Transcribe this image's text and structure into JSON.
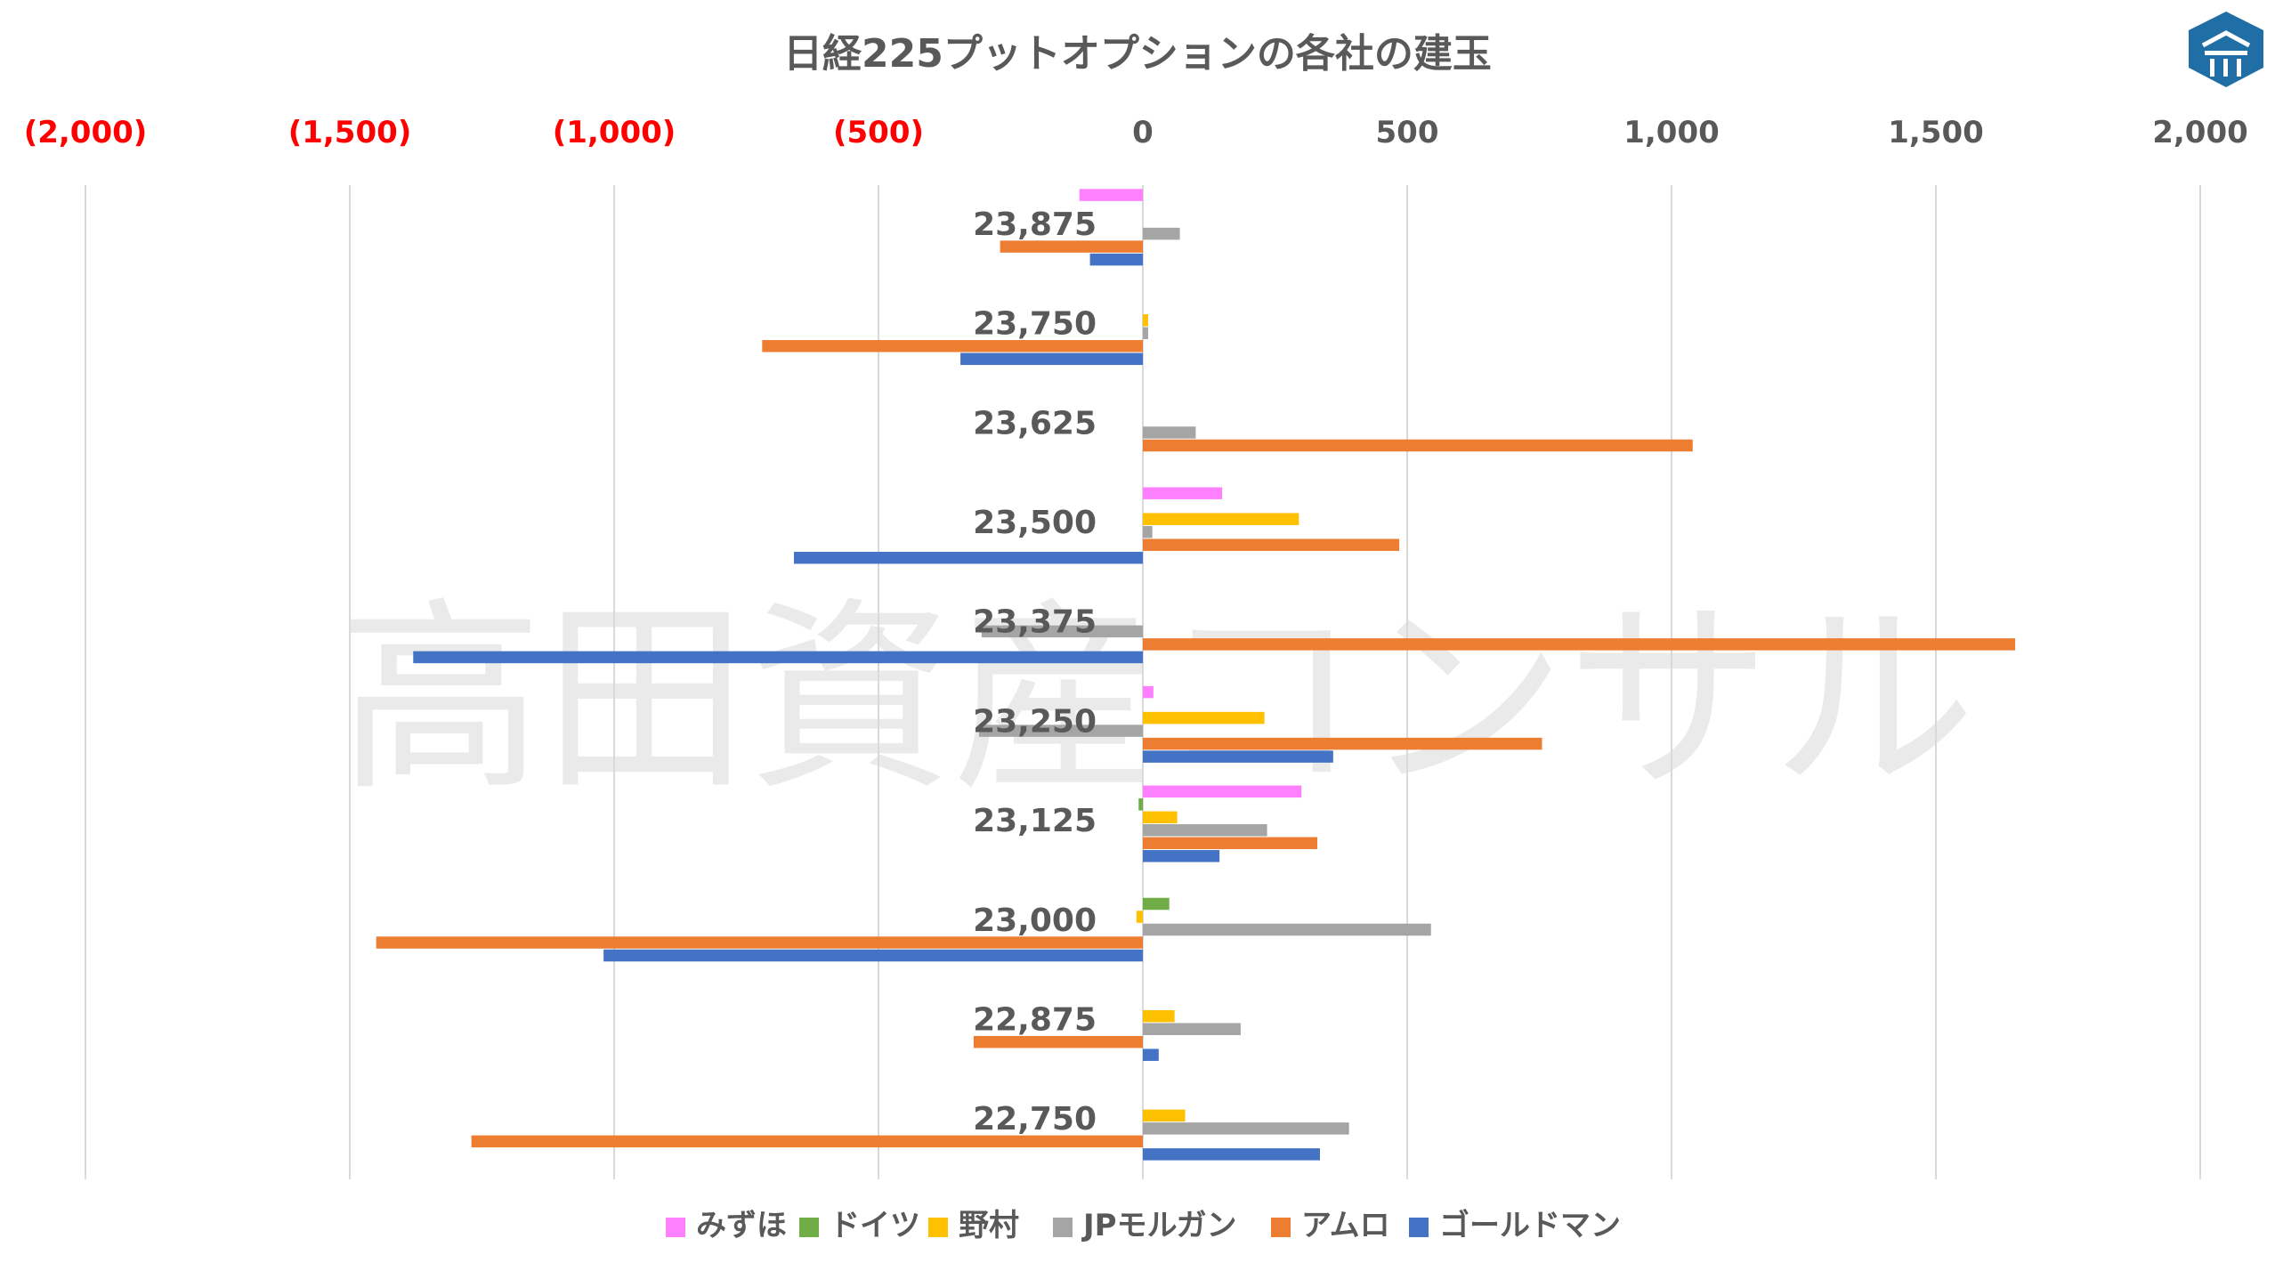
{
  "chart_data": {
    "type": "bar",
    "orientation": "horizontal",
    "title": "日経225プットオプションの各社の建玉",
    "watermark": "高田資産コンサル",
    "xlim": [
      -2000,
      2000
    ],
    "xticks": [
      -2000,
      -1500,
      -1000,
      -500,
      0,
      500,
      1000,
      1500,
      2000
    ],
    "xtick_labels": [
      "(2,000)",
      "(1,500)",
      "(1,000)",
      "(500)",
      "0",
      "500",
      "1,000",
      "1,500",
      "2,000"
    ],
    "negative_tick_color": "#ff0000",
    "positive_tick_color": "#595959",
    "grid": "vertical",
    "legend_position": "bottom",
    "categories": [
      "23,875",
      "23,750",
      "23,625",
      "23,500",
      "23,375",
      "23,250",
      "23,125",
      "23,000",
      "22,875",
      "22,750"
    ],
    "series": [
      {
        "name": "みずほ",
        "color": "#ff80ff",
        "values": [
          -120,
          0,
          0,
          150,
          0,
          20,
          300,
          0,
          0,
          0
        ]
      },
      {
        "name": "ドイツ",
        "color": "#70ad47",
        "values": [
          0,
          0,
          0,
          0,
          0,
          0,
          -8,
          50,
          0,
          0
        ]
      },
      {
        "name": "野村",
        "color": "#ffc000",
        "values": [
          0,
          10,
          0,
          295,
          0,
          230,
          65,
          -12,
          60,
          80
        ]
      },
      {
        "name": "JPモルガン",
        "color": "#a5a5a5",
        "values": [
          70,
          10,
          100,
          18,
          -305,
          -310,
          235,
          545,
          185,
          390
        ]
      },
      {
        "name": "アムロ",
        "color": "#ed7d31",
        "values": [
          -270,
          -720,
          1040,
          485,
          1650,
          755,
          330,
          -1450,
          -320,
          -1270
        ]
      },
      {
        "name": "ゴールドマン",
        "color": "#4472c4",
        "values": [
          -100,
          -345,
          0,
          -660,
          -1380,
          360,
          145,
          -1020,
          30,
          335
        ]
      }
    ]
  },
  "logo": {
    "name": "logo-icon",
    "color": "#1f6fa6"
  }
}
